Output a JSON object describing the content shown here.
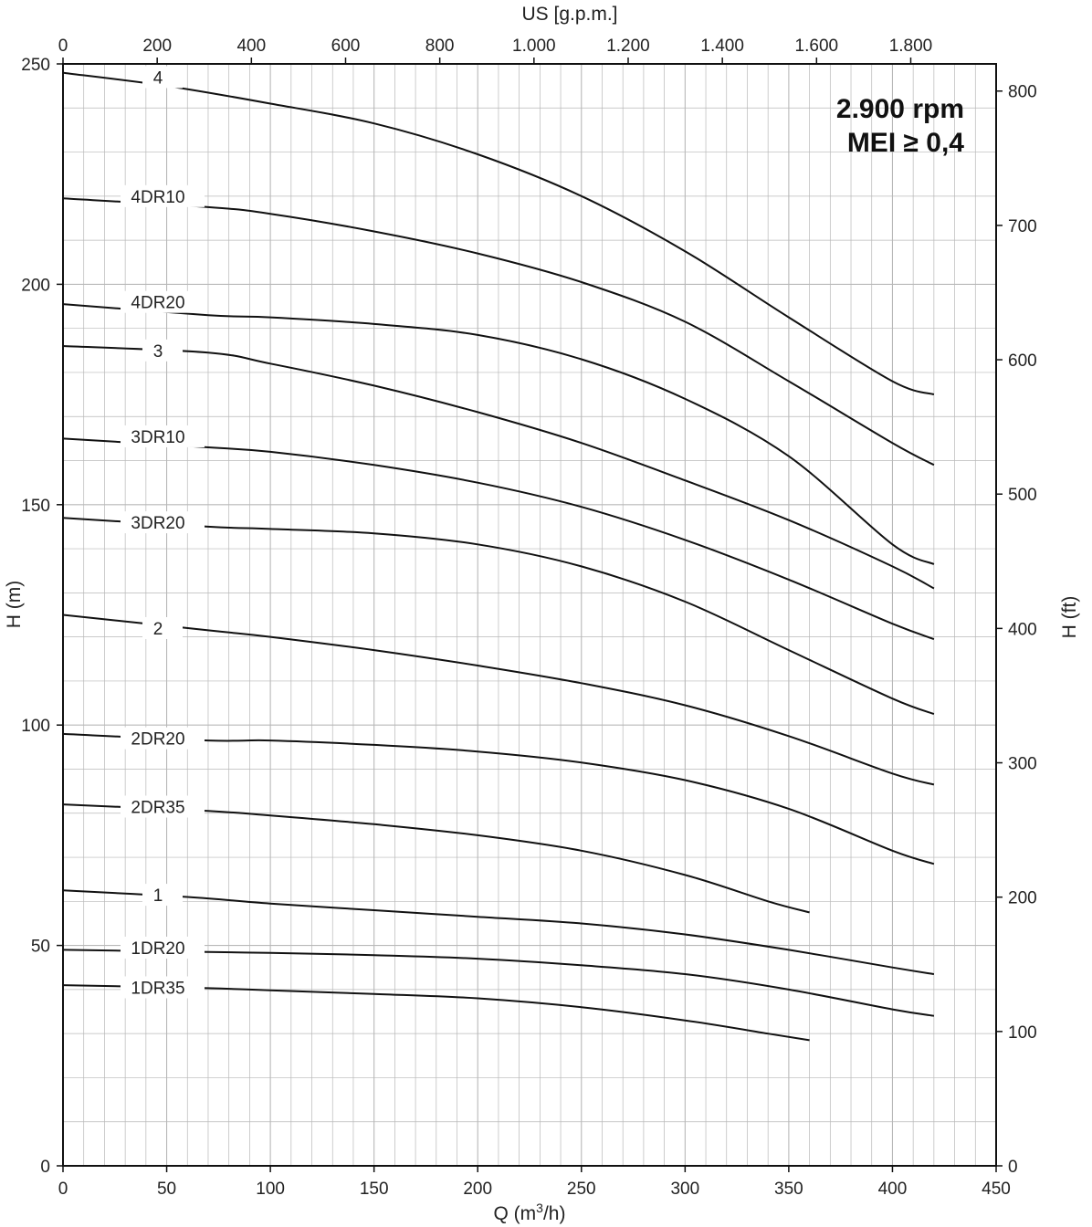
{
  "chart_data": {
    "type": "line",
    "annotation_lines": [
      "2.900 rpm",
      "MEI ≥ 0,4"
    ],
    "xlabel": "Q (m³/h)",
    "xlabel_parts": {
      "main": "Q (m",
      "sup": "3",
      "tail": "/h)"
    },
    "ylabel": "H (m)",
    "y2label": "H (ft)",
    "x2label": "US [g.p.m.]",
    "xlim": [
      0,
      450
    ],
    "ylim": [
      0,
      250
    ],
    "x_ticks": [
      "0",
      "50",
      "100",
      "150",
      "200",
      "250",
      "300",
      "350",
      "400",
      "450"
    ],
    "y_ticks": [
      "0",
      "50",
      "100",
      "150",
      "200",
      "250"
    ],
    "y2_ticks": [
      "0",
      "100",
      "200",
      "300",
      "400",
      "500",
      "600",
      "700",
      "800"
    ],
    "x2_ticks": [
      "0",
      "200",
      "400",
      "600",
      "800",
      "1.000",
      "1.200",
      "1.400",
      "1.600",
      "1.800"
    ],
    "series": [
      {
        "name": "4",
        "points": [
          [
            0,
            248
          ],
          [
            50,
            245
          ],
          [
            100,
            241
          ],
          [
            150,
            236.5
          ],
          [
            200,
            229.5
          ],
          [
            250,
            220
          ],
          [
            300,
            207.5
          ],
          [
            350,
            192.5
          ],
          [
            400,
            178
          ],
          [
            420,
            175
          ]
        ]
      },
      {
        "name": "4DR10",
        "points": [
          [
            0,
            219.5
          ],
          [
            70,
            217.5
          ],
          [
            100,
            216
          ],
          [
            150,
            212
          ],
          [
            200,
            207
          ],
          [
            250,
            200.5
          ],
          [
            300,
            191.5
          ],
          [
            350,
            178
          ],
          [
            400,
            164
          ],
          [
            420,
            159
          ]
        ]
      },
      {
        "name": "4DR20",
        "points": [
          [
            0,
            195.5
          ],
          [
            70,
            193
          ],
          [
            100,
            192.5
          ],
          [
            150,
            191
          ],
          [
            200,
            188.5
          ],
          [
            250,
            183
          ],
          [
            300,
            174
          ],
          [
            350,
            161
          ],
          [
            400,
            141
          ],
          [
            420,
            136.5
          ]
        ]
      },
      {
        "name": "3",
        "points": [
          [
            0,
            186
          ],
          [
            70,
            184.5
          ],
          [
            100,
            182
          ],
          [
            150,
            177
          ],
          [
            200,
            171
          ],
          [
            250,
            164
          ],
          [
            300,
            155.5
          ],
          [
            350,
            146.5
          ],
          [
            400,
            136
          ],
          [
            420,
            131
          ]
        ]
      },
      {
        "name": "3DR10",
        "points": [
          [
            0,
            165
          ],
          [
            70,
            163
          ],
          [
            100,
            162
          ],
          [
            150,
            159
          ],
          [
            200,
            155
          ],
          [
            250,
            149.5
          ],
          [
            300,
            142
          ],
          [
            350,
            133
          ],
          [
            400,
            123
          ],
          [
            420,
            119.5
          ]
        ]
      },
      {
        "name": "3DR20",
        "points": [
          [
            0,
            147
          ],
          [
            70,
            145
          ],
          [
            100,
            144.5
          ],
          [
            150,
            143.5
          ],
          [
            200,
            141
          ],
          [
            250,
            136
          ],
          [
            300,
            128
          ],
          [
            350,
            117
          ],
          [
            400,
            106
          ],
          [
            420,
            102.5
          ]
        ]
      },
      {
        "name": "2",
        "points": [
          [
            0,
            125
          ],
          [
            70,
            121.5
          ],
          [
            100,
            120
          ],
          [
            150,
            117
          ],
          [
            200,
            113.5
          ],
          [
            250,
            109.5
          ],
          [
            300,
            104.5
          ],
          [
            350,
            97.5
          ],
          [
            400,
            89
          ],
          [
            420,
            86.5
          ]
        ]
      },
      {
        "name": "2DR20",
        "points": [
          [
            0,
            98
          ],
          [
            70,
            96.5
          ],
          [
            100,
            96.5
          ],
          [
            150,
            95.5
          ],
          [
            200,
            94
          ],
          [
            250,
            91.5
          ],
          [
            300,
            87.5
          ],
          [
            350,
            81
          ],
          [
            400,
            71.5
          ],
          [
            420,
            68.5
          ]
        ]
      },
      {
        "name": "2DR35",
        "points": [
          [
            0,
            82
          ],
          [
            70,
            80.5
          ],
          [
            100,
            79.5
          ],
          [
            150,
            77.5
          ],
          [
            200,
            75
          ],
          [
            250,
            71.5
          ],
          [
            300,
            66
          ],
          [
            340,
            60
          ],
          [
            360,
            57.5
          ]
        ]
      },
      {
        "name": "1",
        "points": [
          [
            0,
            62.5
          ],
          [
            60,
            61
          ],
          [
            100,
            59.5
          ],
          [
            150,
            58
          ],
          [
            200,
            56.5
          ],
          [
            250,
            55
          ],
          [
            300,
            52.5
          ],
          [
            350,
            49
          ],
          [
            400,
            45
          ],
          [
            420,
            43.5
          ]
        ]
      },
      {
        "name": "1DR20",
        "points": [
          [
            0,
            49
          ],
          [
            70,
            48.5
          ],
          [
            100,
            48.3
          ],
          [
            150,
            47.8
          ],
          [
            200,
            47
          ],
          [
            250,
            45.5
          ],
          [
            300,
            43.5
          ],
          [
            350,
            40
          ],
          [
            400,
            35.5
          ],
          [
            420,
            34
          ]
        ]
      },
      {
        "name": "1DR35",
        "points": [
          [
            0,
            41
          ],
          [
            70,
            40.3
          ],
          [
            100,
            39.8
          ],
          [
            150,
            39
          ],
          [
            200,
            38
          ],
          [
            250,
            36
          ],
          [
            300,
            33
          ],
          [
            340,
            30
          ],
          [
            360,
            28.5
          ]
        ]
      }
    ],
    "labels": [
      {
        "series": "4",
        "text": "4",
        "x": 48,
        "y": 247
      },
      {
        "series": "4DR10",
        "text": "4DR10",
        "x": 48,
        "y": 220
      },
      {
        "series": "4DR20",
        "text": "4DR20",
        "x": 48,
        "y": 196
      },
      {
        "series": "3",
        "text": "3",
        "x": 48,
        "y": 185
      },
      {
        "series": "3DR10",
        "text": "3DR10",
        "x": 48,
        "y": 165.5
      },
      {
        "series": "3DR20",
        "text": "3DR20",
        "x": 48,
        "y": 146
      },
      {
        "series": "2",
        "text": "2",
        "x": 48,
        "y": 122
      },
      {
        "series": "2DR20",
        "text": "2DR20",
        "x": 48,
        "y": 97
      },
      {
        "series": "2DR35",
        "text": "2DR35",
        "x": 48,
        "y": 81.5
      },
      {
        "series": "1",
        "text": "1",
        "x": 48,
        "y": 61.5
      },
      {
        "series": "1DR20",
        "text": "1DR20",
        "x": 48,
        "y": 49.5
      },
      {
        "series": "1DR35",
        "text": "1DR35",
        "x": 48,
        "y": 40.5
      }
    ],
    "grid": true,
    "line_color": "#111111",
    "grid_color": "#b8b8b8"
  }
}
